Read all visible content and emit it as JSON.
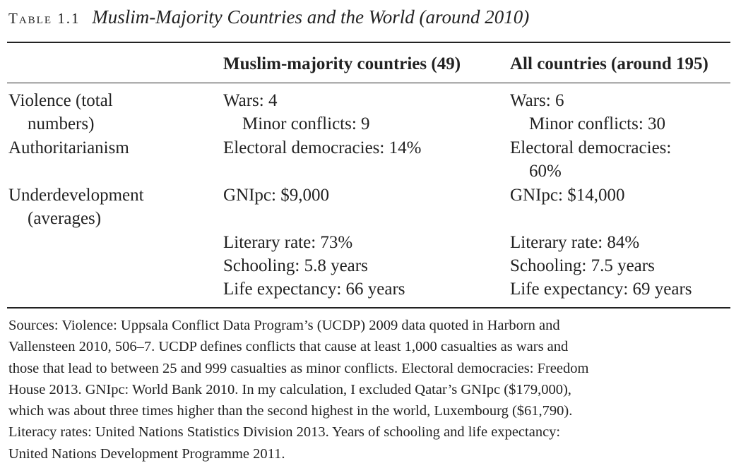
{
  "title": {
    "label": "Table 1.1",
    "caption": "Muslim-Majority Countries and the World (around 2010)"
  },
  "header": {
    "col2": "Muslim-majority countries (49)",
    "col3": "All countries (around 195)"
  },
  "rows": {
    "violence": {
      "label_line1": "Violence (total",
      "label_line2": "numbers)",
      "muslim_wars": "Wars: 4",
      "muslim_minor": "Minor conflicts: 9",
      "all_wars": "Wars: 6",
      "all_minor": "Minor conflicts: 30"
    },
    "authoritarianism": {
      "label": "Authoritarianism",
      "muslim": "Electoral democracies: 14%",
      "all_line1": "Electoral democracies:",
      "all_line2": "60%"
    },
    "underdevelopment": {
      "label_line1": "Underdevelopment",
      "label_line2": "(averages)",
      "muslim_gni": "GNIpc: $9,000",
      "all_gni": "GNIpc: $14,000",
      "muslim_literacy": "Literary rate: 73%",
      "all_literacy": "Literary rate: 84%",
      "muslim_schooling": "Schooling: 5.8 years",
      "all_schooling": "Schooling: 7.5 years",
      "muslim_life": "Life expectancy: 66 years",
      "all_life": "Life expectancy: 69 years"
    }
  },
  "sources": [
    "Sources: Violence: Uppsala Conflict Data Program’s (UCDP) 2009 data quoted in Harborn and",
    "Vallensteen 2010, 506–7. UCDP defines conflicts that cause at least 1,000 casualties as wars and",
    "those that lead to between 25 and 999 casualties as minor conflicts. Electoral democracies: Freedom",
    "House 2013. GNIpc: World Bank 2010. In my calculation, I excluded Qatar’s GNIpc ($179,000),",
    "which was about three times higher than the second highest in the world, Luxembourg ($61,790).",
    "Literacy rates: United Nations Statistics Division 2013. Years of schooling and life expectancy:",
    "United Nations Development Programme 2011."
  ]
}
